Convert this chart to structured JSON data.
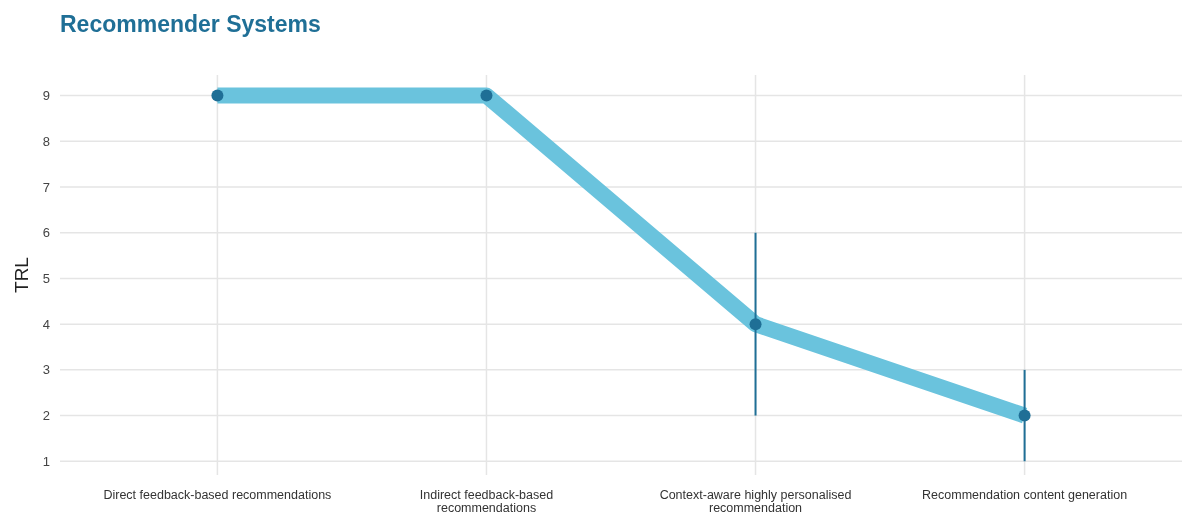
{
  "chart_data": {
    "type": "line",
    "title": "Recommender Systems",
    "ylabel": "TRL",
    "categories": [
      "Direct feedback-based recommendations",
      "Indirect feedback-based recommendations",
      "Context-aware highly personalised recommendation",
      "Recommendation content generation"
    ],
    "series": [
      {
        "color": "#6ac3dd",
        "values": [
          9,
          9,
          4,
          2
        ]
      },
      {
        "type": "scatter",
        "color": "#1f6f96",
        "marker": "circle",
        "values": [
          9,
          9,
          4,
          2
        ],
        "errors": [
          null,
          null,
          [
            2,
            6
          ],
          [
            1,
            3
          ]
        ]
      }
    ],
    "ylim": [
      0.7,
      9.45
    ],
    "yticks": [
      1,
      2,
      3,
      4,
      5,
      6,
      7,
      8,
      9
    ],
    "grid": true
  }
}
